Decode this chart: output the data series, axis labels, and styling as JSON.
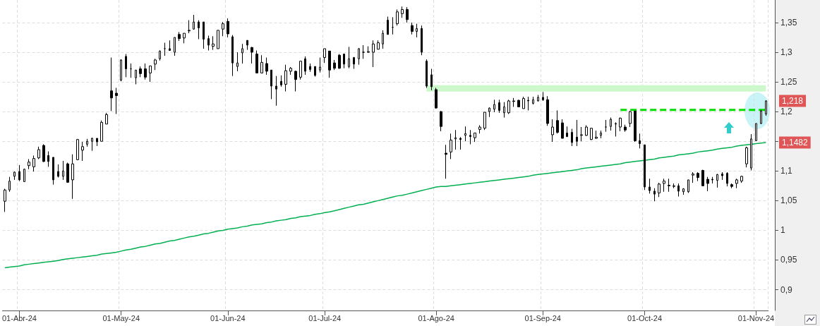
{
  "chart_data": {
    "type": "candlestick",
    "color": "#000000",
    "grid": true,
    "marker": "none",
    "categories": [
      null,
      null,
      null,
      "01-Abr-24",
      null,
      null,
      null,
      null,
      null,
      null,
      null,
      null,
      null,
      null,
      null,
      null,
      null,
      null,
      null,
      null,
      null,
      null,
      null,
      null,
      "01-May-24",
      null,
      null,
      null,
      null,
      null,
      null,
      null,
      null,
      null,
      null,
      null,
      null,
      null,
      null,
      null,
      null,
      null,
      null,
      null,
      null,
      null,
      "01-Jun-24",
      null,
      null,
      null,
      null,
      null,
      null,
      null,
      null,
      null,
      null,
      null,
      null,
      null,
      null,
      null,
      null,
      null,
      null,
      null,
      "01-Jul-24",
      null,
      null,
      null,
      null,
      null,
      null,
      null,
      null,
      null,
      null,
      null,
      null,
      null,
      null,
      null,
      null,
      null,
      null,
      null,
      null,
      null,
      null,
      "01-Ago-24",
      null,
      null,
      null,
      null,
      null,
      null,
      null,
      null,
      null,
      null,
      null,
      null,
      null,
      null,
      null,
      null,
      null,
      null,
      null,
      null,
      null,
      "01-Sep-24",
      null,
      null,
      null,
      null,
      null,
      null,
      null,
      null,
      null,
      null,
      null,
      null,
      null,
      null,
      null,
      null,
      null,
      null,
      null,
      null,
      "01-Oct-24",
      null,
      null,
      null,
      null,
      null,
      null,
      null,
      null,
      null,
      null,
      null,
      null,
      null,
      null,
      null,
      null,
      null,
      null,
      null,
      null,
      null,
      null,
      "01-Nov-24",
      null,
      null
    ],
    "ohlc": [
      [
        1.049,
        1.07,
        1.031,
        1.068
      ],
      [
        1.068,
        1.09,
        1.065,
        1.083
      ],
      [
        1.091,
        1.099,
        1.085,
        1.098
      ],
      [
        1.099,
        1.11,
        1.083,
        1.085
      ],
      [
        1.082,
        1.104,
        1.082,
        1.103
      ],
      [
        1.109,
        1.12,
        1.103,
        1.115
      ],
      [
        1.107,
        1.126,
        1.099,
        1.121
      ],
      [
        1.122,
        1.141,
        1.12,
        1.136
      ],
      [
        1.143,
        1.145,
        1.115,
        1.116
      ],
      [
        1.126,
        1.133,
        1.107,
        1.116
      ],
      [
        1.123,
        1.123,
        1.077,
        1.085
      ],
      [
        1.099,
        1.111,
        1.089,
        1.091
      ],
      [
        1.091,
        1.117,
        1.085,
        1.1
      ],
      [
        1.112,
        1.114,
        1.08,
        1.081
      ],
      [
        1.085,
        1.128,
        1.053,
        1.112
      ],
      [
        1.119,
        1.154,
        1.118,
        1.153
      ],
      [
        1.135,
        1.149,
        1.117,
        1.141
      ],
      [
        1.145,
        1.154,
        1.141,
        1.15
      ],
      [
        1.15,
        1.156,
        1.134,
        1.155
      ],
      [
        1.155,
        1.155,
        1.142,
        1.149
      ],
      [
        1.15,
        1.185,
        1.15,
        1.182
      ],
      [
        1.179,
        1.198,
        1.179,
        1.195
      ],
      [
        1.235,
        1.291,
        1.201,
        1.223
      ],
      [
        1.231,
        1.24,
        1.196,
        1.227
      ],
      [
        1.253,
        1.288,
        1.251,
        1.287
      ],
      [
        1.293,
        1.297,
        1.258,
        1.272
      ],
      [
        1.272,
        1.281,
        1.257,
        1.272
      ],
      [
        1.257,
        1.27,
        1.246,
        1.27
      ],
      [
        1.272,
        1.276,
        1.258,
        1.264
      ],
      [
        1.272,
        1.281,
        1.254,
        1.258
      ],
      [
        1.265,
        1.277,
        1.25,
        1.277
      ],
      [
        1.28,
        1.289,
        1.27,
        1.287
      ],
      [
        1.289,
        1.303,
        1.286,
        1.302
      ],
      [
        1.306,
        1.316,
        1.294,
        1.306
      ],
      [
        1.306,
        1.32,
        1.303,
        1.303
      ],
      [
        1.3,
        1.325,
        1.294,
        1.325
      ],
      [
        1.33,
        1.334,
        1.319,
        1.323
      ],
      [
        1.324,
        1.332,
        1.315,
        1.332
      ],
      [
        1.336,
        1.354,
        1.332,
        1.337
      ],
      [
        1.339,
        1.363,
        1.338,
        1.351
      ],
      [
        1.351,
        1.354,
        1.322,
        1.341
      ],
      [
        1.351,
        1.351,
        1.306,
        1.322
      ],
      [
        1.323,
        1.328,
        1.303,
        1.312
      ],
      [
        1.31,
        1.327,
        1.304,
        1.314
      ],
      [
        1.306,
        1.337,
        1.306,
        1.337
      ],
      [
        1.339,
        1.351,
        1.327,
        1.348
      ],
      [
        1.352,
        1.357,
        1.325,
        1.331
      ],
      [
        1.326,
        1.329,
        1.26,
        1.282
      ],
      [
        1.276,
        1.3,
        1.268,
        1.282
      ],
      [
        1.299,
        1.314,
        1.281,
        1.306
      ],
      [
        1.32,
        1.32,
        1.304,
        1.312
      ],
      [
        1.308,
        1.309,
        1.281,
        1.3
      ],
      [
        1.297,
        1.303,
        1.265,
        1.265
      ],
      [
        1.265,
        1.295,
        1.265,
        1.283
      ],
      [
        1.281,
        1.291,
        1.262,
        1.268
      ],
      [
        1.27,
        1.27,
        1.221,
        1.243
      ],
      [
        1.243,
        1.26,
        1.21,
        1.238
      ],
      [
        1.251,
        1.261,
        1.242,
        1.245
      ],
      [
        1.246,
        1.279,
        1.234,
        1.269
      ],
      [
        1.268,
        1.275,
        1.262,
        1.273
      ],
      [
        1.268,
        1.269,
        1.234,
        1.254
      ],
      [
        1.258,
        1.285,
        1.254,
        1.285
      ],
      [
        1.289,
        1.293,
        1.262,
        1.268
      ],
      [
        1.276,
        1.281,
        1.267,
        1.271
      ],
      [
        1.276,
        1.276,
        1.259,
        1.261
      ],
      [
        1.27,
        1.291,
        1.266,
        1.275
      ],
      [
        1.291,
        1.306,
        1.282,
        1.306
      ],
      [
        1.302,
        1.302,
        1.257,
        1.27
      ],
      [
        1.282,
        1.287,
        1.27,
        1.273
      ],
      [
        1.295,
        1.297,
        1.272,
        1.273
      ],
      [
        1.297,
        1.297,
        1.273,
        1.28
      ],
      [
        1.276,
        1.309,
        1.273,
        1.289
      ],
      [
        1.291,
        1.292,
        1.272,
        1.28
      ],
      [
        1.289,
        1.307,
        1.279,
        1.306
      ],
      [
        1.3,
        1.312,
        1.289,
        1.3
      ],
      [
        1.3,
        1.31,
        1.299,
        1.301
      ],
      [
        1.3,
        1.32,
        1.275,
        1.314
      ],
      [
        1.305,
        1.32,
        1.305,
        1.316
      ],
      [
        1.314,
        1.337,
        1.306,
        1.332
      ],
      [
        1.354,
        1.36,
        1.33,
        1.33
      ],
      [
        1.342,
        1.359,
        1.33,
        1.342
      ],
      [
        1.348,
        1.372,
        1.345,
        1.368
      ],
      [
        1.365,
        1.377,
        1.358,
        1.372
      ],
      [
        1.372,
        1.376,
        1.35,
        1.355
      ],
      [
        1.345,
        1.35,
        1.33,
        1.335
      ],
      [
        1.335,
        1.348,
        1.325,
        1.34
      ],
      [
        1.34,
        1.345,
        1.295,
        1.3
      ],
      [
        1.285,
        1.288,
        1.24,
        1.243
      ],
      [
        1.262,
        1.272,
        1.236,
        1.242
      ],
      [
        1.237,
        1.24,
        1.205,
        1.206
      ],
      [
        1.2,
        1.201,
        1.167,
        1.175
      ],
      [
        1.13,
        1.144,
        1.087,
        1.128
      ],
      [
        1.132,
        1.163,
        1.12,
        1.152
      ],
      [
        1.154,
        1.169,
        1.136,
        1.156
      ],
      [
        1.155,
        1.157,
        1.136,
        1.153
      ],
      [
        1.16,
        1.175,
        1.15,
        1.163
      ],
      [
        1.16,
        1.169,
        1.145,
        1.158
      ],
      [
        1.156,
        1.164,
        1.149,
        1.164
      ],
      [
        1.17,
        1.177,
        1.163,
        1.174
      ],
      [
        1.172,
        1.199,
        1.169,
        1.199
      ],
      [
        1.2,
        1.207,
        1.191,
        1.206
      ],
      [
        1.204,
        1.22,
        1.199,
        1.212
      ],
      [
        1.215,
        1.22,
        1.198,
        1.202
      ],
      [
        1.198,
        1.216,
        1.19,
        1.208
      ],
      [
        1.198,
        1.22,
        1.196,
        1.218
      ],
      [
        1.217,
        1.223,
        1.208,
        1.218
      ],
      [
        1.219,
        1.22,
        1.208,
        1.208
      ],
      [
        1.205,
        1.225,
        1.205,
        1.222
      ],
      [
        1.219,
        1.225,
        1.202,
        1.218
      ],
      [
        1.214,
        1.225,
        1.212,
        1.22
      ],
      [
        1.218,
        1.228,
        1.217,
        1.224
      ],
      [
        1.224,
        1.233,
        1.218,
        1.22
      ],
      [
        1.22,
        1.226,
        1.176,
        1.18
      ],
      [
        1.161,
        1.187,
        1.149,
        1.174
      ],
      [
        1.185,
        1.202,
        1.163,
        1.165
      ],
      [
        1.181,
        1.187,
        1.155,
        1.155
      ],
      [
        1.164,
        1.175,
        1.157,
        1.158
      ],
      [
        1.165,
        1.171,
        1.142,
        1.148
      ],
      [
        1.157,
        1.186,
        1.142,
        1.15
      ],
      [
        1.16,
        1.174,
        1.15,
        1.161
      ],
      [
        1.16,
        1.177,
        1.159,
        1.174
      ],
      [
        1.153,
        1.172,
        1.152,
        1.172
      ],
      [
        1.155,
        1.168,
        1.154,
        1.157
      ],
      [
        1.16,
        1.168,
        1.155,
        1.164
      ],
      [
        1.174,
        1.186,
        1.166,
        1.174
      ],
      [
        1.175,
        1.19,
        1.168,
        1.187
      ],
      [
        1.179,
        1.182,
        1.158,
        1.18
      ],
      [
        1.174,
        1.19,
        1.167,
        1.189
      ],
      [
        1.174,
        1.178,
        1.166,
        1.169
      ],
      [
        1.18,
        1.201,
        1.174,
        1.2
      ],
      [
        1.201,
        1.201,
        1.149,
        1.151
      ],
      [
        1.151,
        1.163,
        1.138,
        1.146
      ],
      [
        1.144,
        1.144,
        1.068,
        1.073
      ],
      [
        1.073,
        1.087,
        1.062,
        1.067
      ],
      [
        1.066,
        1.071,
        1.049,
        1.061
      ],
      [
        1.063,
        1.08,
        1.056,
        1.078
      ],
      [
        1.079,
        1.087,
        1.065,
        1.083
      ],
      [
        1.076,
        1.087,
        1.065,
        1.075
      ],
      [
        1.074,
        1.079,
        1.071,
        1.075
      ],
      [
        1.075,
        1.079,
        1.057,
        1.066
      ],
      [
        1.065,
        1.071,
        1.06,
        1.07
      ],
      [
        1.065,
        1.085,
        1.063,
        1.085
      ],
      [
        1.093,
        1.098,
        1.08,
        1.095
      ],
      [
        1.096,
        1.098,
        1.083,
        1.089
      ],
      [
        1.101,
        1.102,
        1.075,
        1.075
      ],
      [
        1.086,
        1.09,
        1.066,
        1.079
      ],
      [
        1.086,
        1.09,
        1.079,
        1.085
      ],
      [
        1.084,
        1.095,
        1.072,
        1.094
      ],
      [
        1.095,
        1.098,
        1.085,
        1.092
      ],
      [
        1.096,
        1.098,
        1.074,
        1.079
      ],
      [
        1.077,
        1.079,
        1.071,
        1.074
      ],
      [
        1.079,
        1.087,
        1.071,
        1.085
      ],
      [
        1.083,
        1.092,
        1.08,
        1.091
      ],
      [
        1.112,
        1.141,
        1.106,
        1.139
      ],
      [
        1.105,
        1.162,
        1.101,
        1.154
      ],
      [
        1.151,
        1.18,
        1.151,
        1.18
      ],
      [
        1.18,
        1.203,
        1.179,
        1.201
      ],
      [
        1.196,
        1.219,
        1.193,
        1.218
      ]
    ],
    "series": [
      {
        "type": "line",
        "color": "#00b050",
        "values": [
          0.937,
          0.938,
          0.939,
          0.94,
          0.942,
          0.943,
          0.944,
          0.945,
          0.946,
          0.947,
          0.948,
          0.949,
          0.951,
          0.952,
          0.953,
          0.954,
          0.955,
          0.956,
          0.957,
          0.958,
          0.96,
          0.961,
          0.962,
          0.963,
          0.965,
          0.967,
          0.968,
          0.97,
          0.972,
          0.973,
          0.975,
          0.977,
          0.978,
          0.98,
          0.982,
          0.983,
          0.985,
          0.987,
          0.989,
          0.99,
          0.992,
          0.994,
          0.995,
          0.997,
          0.999,
          1.0,
          1.002,
          1.003,
          1.004,
          1.006,
          1.007,
          1.009,
          1.01,
          1.011,
          1.013,
          1.014,
          1.016,
          1.017,
          1.018,
          1.02,
          1.021,
          1.023,
          1.024,
          1.025,
          1.027,
          1.028,
          1.03,
          1.031,
          1.033,
          1.035,
          1.037,
          1.039,
          1.041,
          1.043,
          1.044,
          1.046,
          1.048,
          1.05,
          1.052,
          1.054,
          1.056,
          1.058,
          1.059,
          1.061,
          1.063,
          1.065,
          1.067,
          1.069,
          1.071,
          1.073,
          1.074,
          1.074,
          1.075,
          1.076,
          1.077,
          1.078,
          1.079,
          1.08,
          1.081,
          1.082,
          1.083,
          1.084,
          1.085,
          1.086,
          1.087,
          1.088,
          1.089,
          1.09,
          1.091,
          1.093,
          1.094,
          1.095,
          1.096,
          1.097,
          1.098,
          1.099,
          1.1,
          1.101,
          1.102,
          1.104,
          1.105,
          1.106,
          1.107,
          1.108,
          1.109,
          1.11,
          1.111,
          1.112,
          1.114,
          1.115,
          1.116,
          1.117,
          1.118,
          1.119,
          1.12,
          1.122,
          1.123,
          1.124,
          1.125,
          1.127,
          1.128,
          1.129,
          1.13,
          1.132,
          1.133,
          1.134,
          1.135,
          1.137,
          1.138,
          1.139,
          1.14,
          1.142,
          1.143,
          1.144,
          1.145,
          1.146,
          1.147,
          1.148
        ]
      },
      {
        "type": "line",
        "color": "#ccf8cc",
        "values": [
          null,
          null,
          null,
          null,
          null,
          null,
          null,
          null,
          null,
          null,
          null,
          null,
          null,
          null,
          null,
          null,
          null,
          null,
          null,
          null,
          null,
          null,
          null,
          null,
          null,
          null,
          null,
          null,
          null,
          null,
          null,
          null,
          null,
          null,
          null,
          null,
          null,
          null,
          null,
          null,
          null,
          null,
          null,
          null,
          null,
          null,
          null,
          null,
          null,
          null,
          null,
          null,
          null,
          null,
          null,
          null,
          null,
          null,
          null,
          null,
          null,
          null,
          null,
          null,
          null,
          null,
          null,
          null,
          null,
          null,
          null,
          null,
          null,
          null,
          null,
          null,
          null,
          null,
          null,
          null,
          null,
          null,
          null,
          null,
          null,
          null,
          null,
          1.239,
          1.239,
          1.239,
          1.239,
          1.239,
          1.239,
          1.239,
          1.239,
          1.239,
          1.239,
          1.239,
          1.239,
          1.239,
          1.239,
          1.239,
          1.239,
          1.239,
          1.239,
          1.239,
          1.239,
          1.239,
          1.239,
          1.239,
          1.239,
          1.239,
          1.239,
          1.239,
          1.239,
          1.239,
          1.239,
          1.239,
          1.239,
          1.239,
          1.239,
          1.239,
          1.239,
          1.239,
          1.239,
          1.239,
          1.239,
          1.239,
          1.239,
          1.239,
          1.239,
          1.239,
          1.239,
          1.239,
          1.239,
          1.239,
          1.239,
          1.239,
          1.239,
          1.239,
          1.239,
          1.239,
          1.239,
          1.239,
          1.239,
          1.239,
          1.239,
          1.239,
          1.239,
          1.239,
          1.239,
          1.239,
          1.239,
          1.239,
          1.239,
          1.239,
          1.239,
          1.239
        ]
      },
      {
        "type": "line",
        "color": "#00dd00",
        "line_style": "dashed",
        "values": [
          null,
          null,
          null,
          null,
          null,
          null,
          null,
          null,
          null,
          null,
          null,
          null,
          null,
          null,
          null,
          null,
          null,
          null,
          null,
          null,
          null,
          null,
          null,
          null,
          null,
          null,
          null,
          null,
          null,
          null,
          null,
          null,
          null,
          null,
          null,
          null,
          null,
          null,
          null,
          null,
          null,
          null,
          null,
          null,
          null,
          null,
          null,
          null,
          null,
          null,
          null,
          null,
          null,
          null,
          null,
          null,
          null,
          null,
          null,
          null,
          null,
          null,
          null,
          null,
          null,
          null,
          null,
          null,
          null,
          null,
          null,
          null,
          null,
          null,
          null,
          null,
          null,
          null,
          null,
          null,
          null,
          null,
          null,
          null,
          null,
          null,
          null,
          null,
          null,
          null,
          null,
          null,
          null,
          null,
          null,
          null,
          null,
          null,
          null,
          null,
          null,
          null,
          null,
          null,
          null,
          null,
          null,
          null,
          null,
          null,
          null,
          null,
          null,
          null,
          null,
          null,
          null,
          null,
          null,
          null,
          null,
          null,
          null,
          null,
          null,
          null,
          null,
          1.203,
          1.203,
          1.203,
          1.203,
          1.203,
          1.203,
          1.203,
          1.203,
          1.203,
          1.203,
          1.203,
          1.203,
          1.203,
          1.203,
          1.203,
          1.203,
          1.203,
          1.203,
          1.203,
          1.203,
          1.203,
          1.203,
          1.203,
          1.203,
          1.203,
          1.203,
          1.203,
          1.203,
          1.203,
          1.203,
          1.203
        ]
      }
    ],
    "ylim": [
      0.865,
      1.388
    ],
    "yticks": [
      {
        "value": 0.9,
        "label": "0,9"
      },
      {
        "value": 0.95,
        "label": "0,95"
      },
      1,
      {
        "value": 1.05,
        "label": "1,05"
      },
      {
        "value": 1.1,
        "label": "1,1"
      },
      {
        "value": 1.15,
        "label": null
      },
      {
        "value": 1.2,
        "label": "1,2"
      },
      {
        "value": 1.25,
        "label": "1,25"
      },
      {
        "value": 1.3,
        "label": "1,3"
      },
      {
        "value": 1.35,
        "label": "1,35"
      }
    ],
    "annotations": [
      "1,218",
      "1,1482"
    ]
  }
}
